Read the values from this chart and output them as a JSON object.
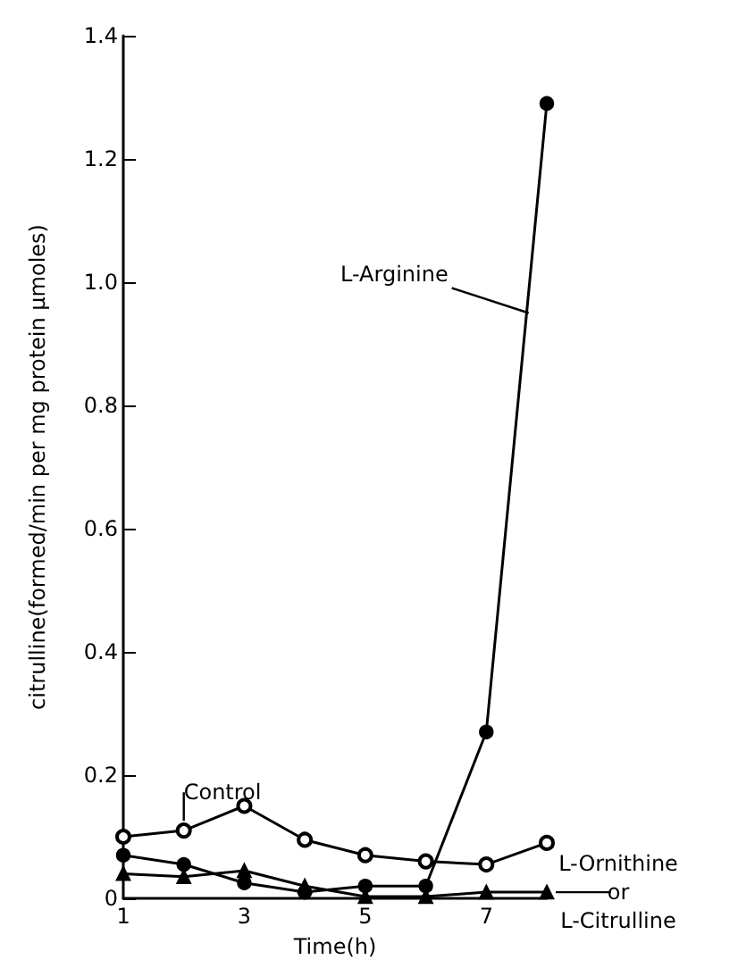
{
  "chart_data": {
    "type": "line",
    "xlabel": "Time(h)",
    "ylabel": "citrulline(formed/min per mg protein μmoles)",
    "x": [
      1,
      2,
      3,
      4,
      5,
      6,
      7,
      8
    ],
    "series": [
      {
        "color": "#000000",
        "marker": "circle",
        "values": [
          0.07,
          0.055,
          0.025,
          0.01,
          0.02,
          0.02,
          0.27,
          1.29
        ]
      },
      {
        "color": "#000000",
        "marker": "circle-open",
        "values": [
          0.1,
          0.11,
          0.15,
          0.095,
          0.07,
          0.06,
          0.055,
          0.09
        ]
      },
      {
        "color": "#000000",
        "marker": "triangle",
        "values": [
          0.04,
          0.035,
          0.045,
          0.02,
          0.003,
          0.003,
          0.01,
          0.01
        ]
      }
    ],
    "xlim": [
      1,
      8
    ],
    "xticks": [
      1,
      3,
      5,
      7
    ],
    "ylim": [
      0,
      1.4
    ],
    "yticks": [
      0,
      0.2,
      0.4,
      0.6,
      0.8,
      {
        "value": 1,
        "label": "1.0"
      },
      1.2,
      1.4
    ],
    "grid": false,
    "line_style": "solid",
    "annotations": [
      {
        "text": "L-Arginine",
        "x": 7.7,
        "y": 0.95
      },
      {
        "text": "Control",
        "x": 2,
        "y": 0.12
      },
      {
        "text": "L-Ornithine or L-Citrulline",
        "x": 8,
        "y": 0.01
      }
    ]
  }
}
